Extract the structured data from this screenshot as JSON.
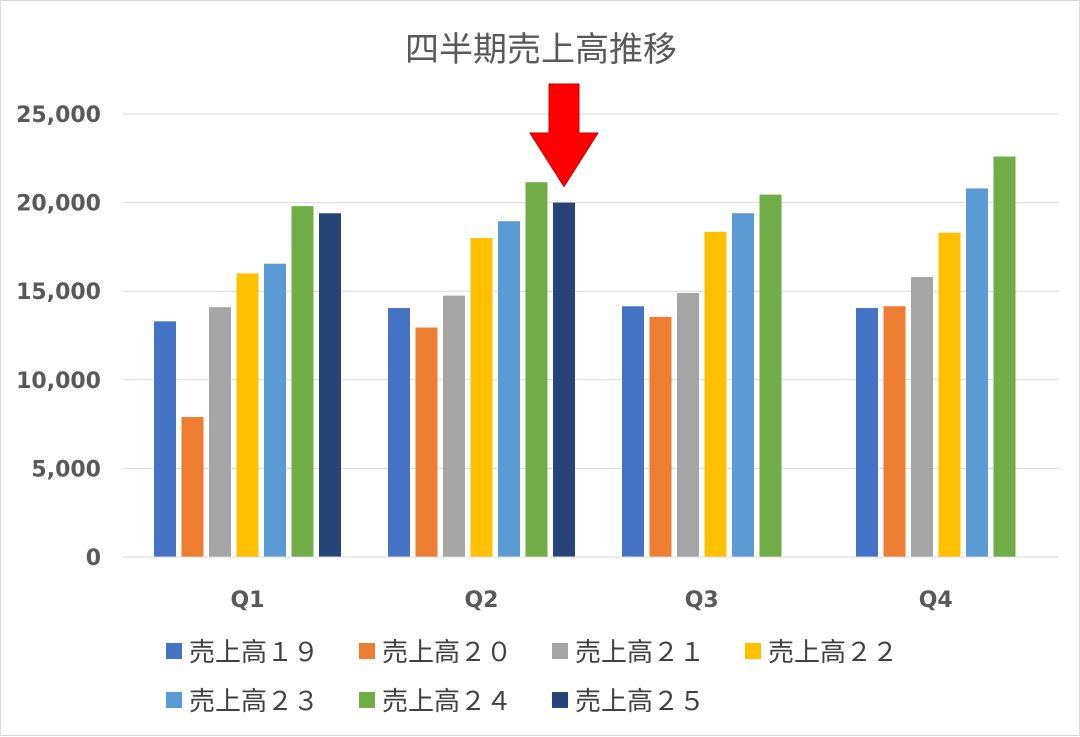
{
  "chart_data": {
    "type": "bar",
    "title": "四半期売上高推移",
    "categories": [
      "Q1",
      "Q2",
      "Q3",
      "Q4"
    ],
    "yticks": [
      "0",
      "5,000",
      "10,000",
      "15,000",
      "20,000",
      "25,000"
    ],
    "ylim": [
      0,
      25000
    ],
    "grid": true,
    "legend_position": "bottom",
    "series": [
      {
        "name": "売上高１９",
        "color": "#4472C4",
        "values": [
          13300,
          14050,
          14150,
          14050
        ]
      },
      {
        "name": "売上高２０",
        "color": "#ED7D31",
        "values": [
          7900,
          12950,
          13550,
          14150
        ]
      },
      {
        "name": "売上高２１",
        "color": "#A5A5A5",
        "values": [
          14100,
          14750,
          14900,
          15800
        ]
      },
      {
        "name": "売上高２２",
        "color": "#FFC000",
        "values": [
          16000,
          18000,
          18350,
          18300
        ]
      },
      {
        "name": "売上高２３",
        "color": "#5B9BD5",
        "values": [
          16550,
          18950,
          19400,
          20800
        ]
      },
      {
        "name": "売上高２４",
        "color": "#70AD47",
        "values": [
          19800,
          21150,
          20450,
          22600
        ]
      },
      {
        "name": "売上高２５",
        "color": "#264478",
        "values": [
          19400,
          20000,
          null,
          null
        ]
      }
    ],
    "annotation": {
      "type": "arrow",
      "color": "#FF0000",
      "category": "Q2",
      "points_to_series": "売上高２５"
    }
  }
}
